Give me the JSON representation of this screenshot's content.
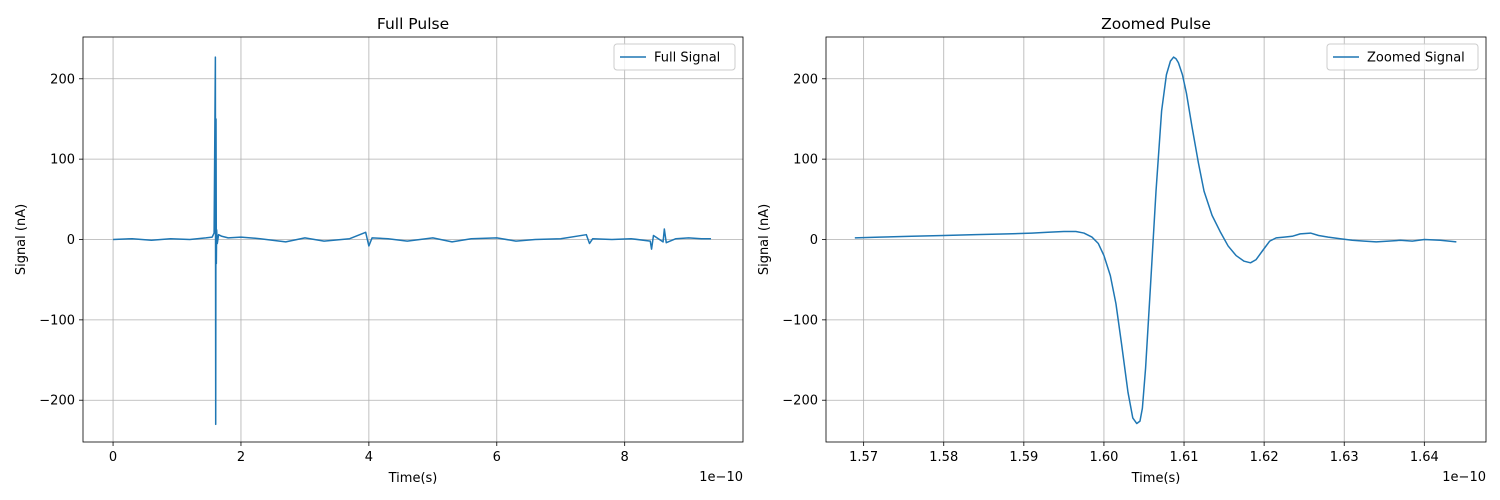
{
  "chart_data": [
    {
      "type": "line",
      "title": "Full Pulse",
      "xlabel": "Time(s)",
      "ylabel": "Signal (nA)",
      "x_offset_text": "1e−10",
      "xlim": [
        -0.47,
        9.85
      ],
      "ylim": [
        -252,
        252
      ],
      "xticks": [
        0,
        2,
        4,
        6,
        8
      ],
      "xtick_labels": [
        "0",
        "2",
        "4",
        "6",
        "8"
      ],
      "yticks": [
        -200,
        -100,
        0,
        100,
        200
      ],
      "ytick_labels": [
        "−200",
        "−100",
        "0",
        "100",
        "200"
      ],
      "grid": true,
      "legend_position": "top-right",
      "color": "#1f77b4",
      "series": [
        {
          "name": "Full Signal",
          "x": [
            0,
            0.3,
            0.6,
            0.9,
            1.2,
            1.45,
            1.55,
            1.58,
            1.6,
            1.605,
            1.61,
            1.615,
            1.62,
            1.63,
            1.65,
            1.7,
            1.8,
            2.0,
            2.3,
            2.7,
            3.0,
            3.3,
            3.7,
            3.95,
            4.0,
            4.05,
            4.3,
            4.6,
            5.0,
            5.3,
            5.6,
            6.0,
            6.3,
            6.6,
            7.0,
            7.4,
            7.45,
            7.5,
            7.8,
            8.1,
            8.4,
            8.42,
            8.45,
            8.6,
            8.62,
            8.65,
            8.8,
            9.0,
            9.2,
            9.35
          ],
          "y": [
            0,
            1,
            -1,
            1,
            0,
            2,
            3,
            8,
            227,
            -230,
            150,
            -30,
            12,
            -5,
            6,
            4,
            2,
            3,
            1,
            -3,
            2,
            -2,
            1,
            9,
            -8,
            2,
            1,
            -2,
            2,
            -3,
            1,
            2,
            -2,
            0,
            1,
            6,
            -5,
            1,
            0,
            1,
            -2,
            -12,
            5,
            -3,
            13,
            -4,
            1,
            2,
            1,
            1
          ]
        }
      ]
    },
    {
      "type": "line",
      "title": "Zoomed Pulse",
      "xlabel": "Time(s)",
      "ylabel": "Signal (nA)",
      "x_offset_text": "1e−10",
      "xlim": [
        1.5653,
        1.6477
      ],
      "ylim": [
        -252,
        252
      ],
      "xticks": [
        1.57,
        1.58,
        1.59,
        1.6,
        1.61,
        1.62,
        1.63,
        1.64
      ],
      "xtick_labels": [
        "1.57",
        "1.58",
        "1.59",
        "1.60",
        "1.61",
        "1.62",
        "1.63",
        "1.64"
      ],
      "yticks": [
        -200,
        -100,
        0,
        100,
        200
      ],
      "ytick_labels": [
        "−200",
        "−100",
        "0",
        "100",
        "200"
      ],
      "grid": true,
      "legend_position": "top-right",
      "color": "#1f77b4",
      "series": [
        {
          "name": "Zoomed Signal",
          "x": [
            1.5689,
            1.572,
            1.576,
            1.58,
            1.584,
            1.588,
            1.591,
            1.593,
            1.595,
            1.5965,
            1.5975,
            1.5985,
            1.5993,
            1.6,
            1.6008,
            1.6015,
            1.6022,
            1.603,
            1.6036,
            1.6041,
            1.6045,
            1.6048,
            1.6052,
            1.6058,
            1.6065,
            1.6072,
            1.6078,
            1.6083,
            1.6087,
            1.609,
            1.6093,
            1.6098,
            1.6103,
            1.611,
            1.6118,
            1.6125,
            1.6135,
            1.6145,
            1.6155,
            1.6165,
            1.6175,
            1.6183,
            1.619,
            1.6198,
            1.6207,
            1.6215,
            1.6225,
            1.6235,
            1.6245,
            1.6258,
            1.6268,
            1.628,
            1.6295,
            1.631,
            1.6325,
            1.634,
            1.6355,
            1.637,
            1.6385,
            1.64,
            1.642,
            1.644
          ],
          "y": [
            2,
            3,
            4,
            5,
            6,
            7,
            8,
            9,
            10,
            10,
            8,
            3,
            -5,
            -20,
            -45,
            -80,
            -130,
            -190,
            -222,
            -229,
            -226,
            -210,
            -160,
            -60,
            60,
            160,
            205,
            222,
            227,
            225,
            220,
            205,
            182,
            140,
            95,
            60,
            30,
            10,
            -8,
            -20,
            -27,
            -29,
            -25,
            -14,
            -2,
            2,
            3,
            4,
            7,
            8,
            5,
            3,
            1,
            -1,
            -2,
            -3,
            -2,
            -1,
            -2,
            0,
            -1,
            -3
          ]
        }
      ]
    }
  ]
}
